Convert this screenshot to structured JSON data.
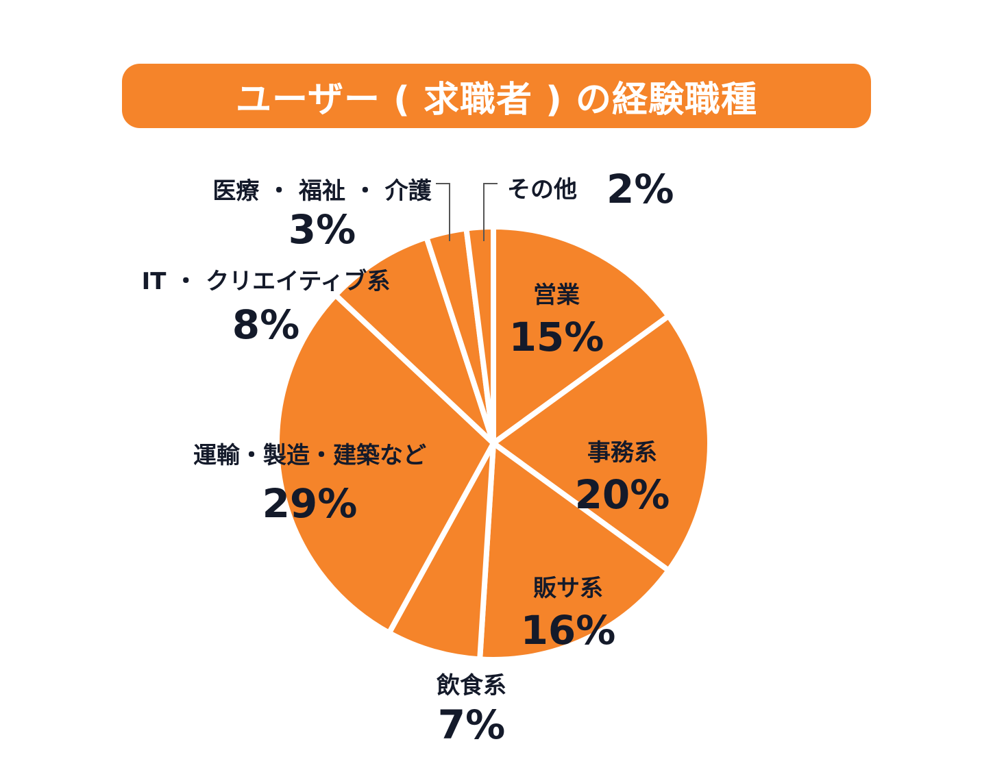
{
  "title": "ユーザー ( 求職者 ) の経験職種",
  "colors": {
    "slice": "#F5842A",
    "separator": "#ffffff",
    "text": "#141a2a",
    "title_bg": "#F5842A",
    "title_text": "#ffffff"
  },
  "chart_data": {
    "type": "pie",
    "title": "ユーザー ( 求職者 ) の経験職種",
    "slices": [
      {
        "name": "営業",
        "value": 15,
        "label": "15%"
      },
      {
        "name": "事務系",
        "value": 20,
        "label": "20%"
      },
      {
        "name": "販サ系",
        "value": 16,
        "label": "16%"
      },
      {
        "name": "飲食系",
        "value": 7,
        "label": "7%"
      },
      {
        "name": "運輸・製造・建築など",
        "value": 29,
        "label": "29%"
      },
      {
        "name": "IT ・ クリエイティブ系",
        "value": 8,
        "label": "8%"
      },
      {
        "name": "医療 ・ 福祉 ・ 介護",
        "value": 3,
        "label": "3%"
      },
      {
        "name": "その他",
        "value": 2,
        "label": "2%"
      }
    ]
  }
}
